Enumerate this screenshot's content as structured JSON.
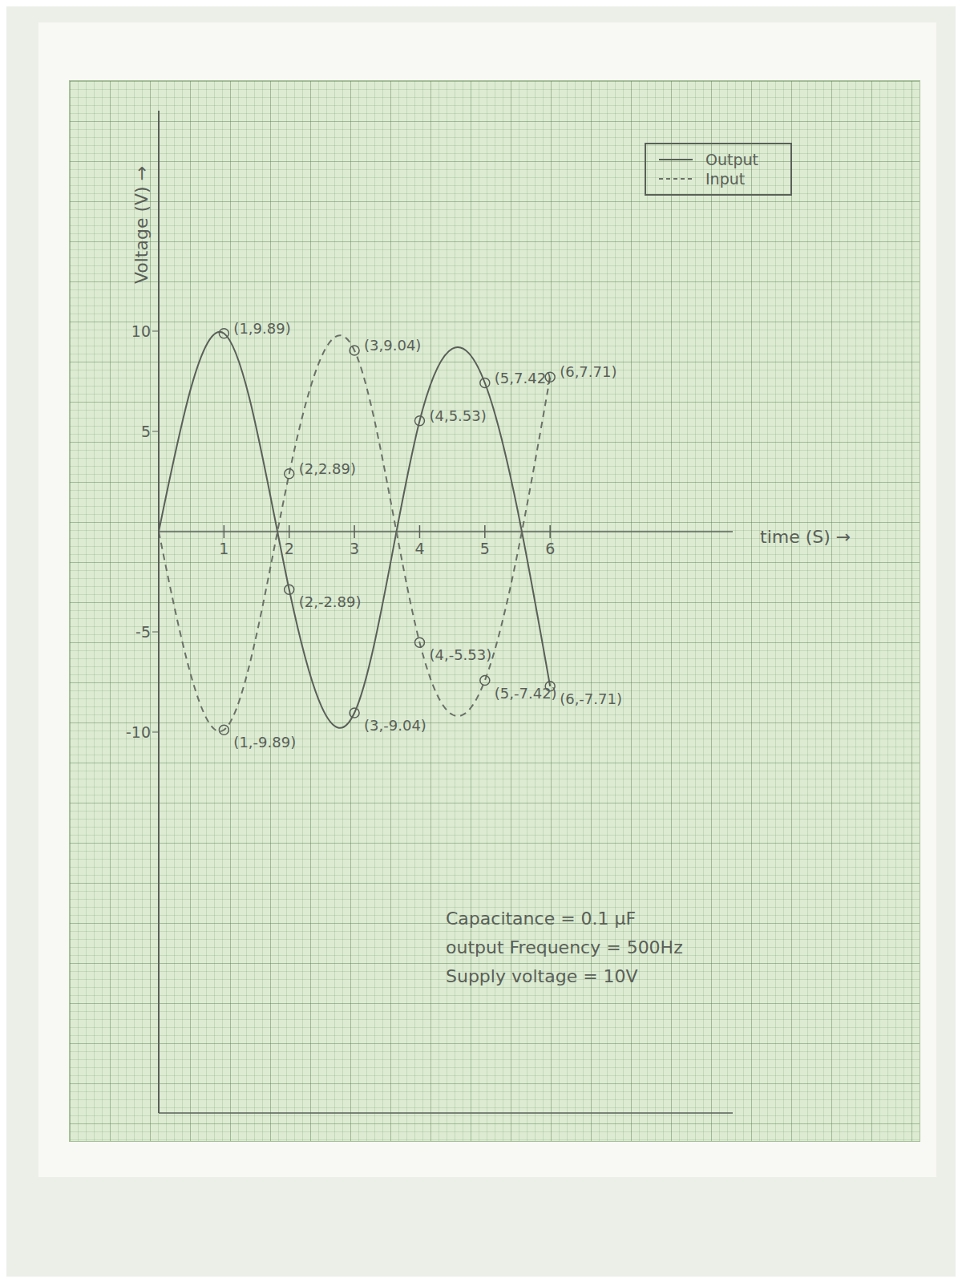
{
  "chart_data": {
    "type": "line",
    "x_label": "time (S) →",
    "y_label": "Voltage (V) →",
    "x": [
      0,
      1,
      2,
      3,
      4,
      5,
      6
    ],
    "series": [
      {
        "name": "Output",
        "color": "#5a5f58",
        "line_style": "solid",
        "marker": "circle",
        "values": [
          0,
          9.89,
          -2.89,
          -9.04,
          5.53,
          7.42,
          -7.71
        ],
        "value_labels": [
          null,
          "(1,9.89)",
          "(2,-2.89)",
          "(3,-9.04)",
          "(4,5.53)",
          "(5,7.42)",
          "(6,-7.71)"
        ]
      },
      {
        "name": "Input",
        "color": "#6a7066",
        "line_style": "dashed",
        "marker": "circle",
        "values": [
          0,
          -9.89,
          2.89,
          9.04,
          -5.53,
          -7.42,
          7.71
        ],
        "value_labels": [
          null,
          "(1,-9.89)",
          "(2,2.89)",
          "(3,9.04)",
          "(4,-5.53)",
          "(5,-7.42)",
          "(6,7.71)"
        ]
      }
    ],
    "xlim": [
      0,
      8.8
    ],
    "xticks": [
      1,
      2,
      3,
      4,
      5,
      6
    ],
    "ylim": [
      -29,
      21
    ],
    "yticks": [
      -10,
      -5,
      5,
      10
    ],
    "grid": false,
    "legend": "upper right",
    "data_labels": true,
    "annotations": [
      "Capacitance = 0.1 µF",
      "output Frequency = 500Hz",
      "Supply voltage = 10V"
    ]
  }
}
